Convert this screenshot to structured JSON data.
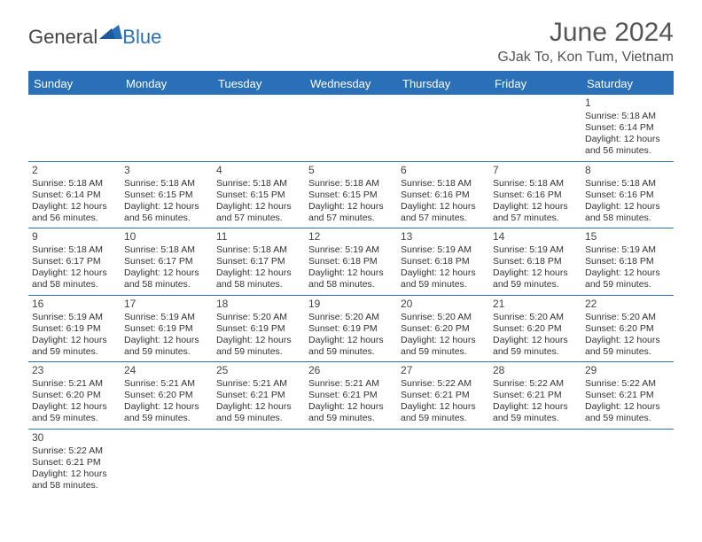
{
  "logo": {
    "text1": "General",
    "text2": "Blue"
  },
  "title": "June 2024",
  "location": "GJak To, Kon Tum, Vietnam",
  "day_names": [
    "Sunday",
    "Monday",
    "Tuesday",
    "Wednesday",
    "Thursday",
    "Friday",
    "Saturday"
  ],
  "colors": {
    "brand": "#2a70b8",
    "text": "#333333",
    "title": "#555555"
  },
  "layout": {
    "first_weekday_index": 6,
    "days_in_month": 30
  },
  "days": [
    {
      "n": 1,
      "sunrise": "5:18 AM",
      "sunset": "6:14 PM",
      "daylight": "12 hours and 56 minutes."
    },
    {
      "n": 2,
      "sunrise": "5:18 AM",
      "sunset": "6:14 PM",
      "daylight": "12 hours and 56 minutes."
    },
    {
      "n": 3,
      "sunrise": "5:18 AM",
      "sunset": "6:15 PM",
      "daylight": "12 hours and 56 minutes."
    },
    {
      "n": 4,
      "sunrise": "5:18 AM",
      "sunset": "6:15 PM",
      "daylight": "12 hours and 57 minutes."
    },
    {
      "n": 5,
      "sunrise": "5:18 AM",
      "sunset": "6:15 PM",
      "daylight": "12 hours and 57 minutes."
    },
    {
      "n": 6,
      "sunrise": "5:18 AM",
      "sunset": "6:16 PM",
      "daylight": "12 hours and 57 minutes."
    },
    {
      "n": 7,
      "sunrise": "5:18 AM",
      "sunset": "6:16 PM",
      "daylight": "12 hours and 57 minutes."
    },
    {
      "n": 8,
      "sunrise": "5:18 AM",
      "sunset": "6:16 PM",
      "daylight": "12 hours and 58 minutes."
    },
    {
      "n": 9,
      "sunrise": "5:18 AM",
      "sunset": "6:17 PM",
      "daylight": "12 hours and 58 minutes."
    },
    {
      "n": 10,
      "sunrise": "5:18 AM",
      "sunset": "6:17 PM",
      "daylight": "12 hours and 58 minutes."
    },
    {
      "n": 11,
      "sunrise": "5:18 AM",
      "sunset": "6:17 PM",
      "daylight": "12 hours and 58 minutes."
    },
    {
      "n": 12,
      "sunrise": "5:19 AM",
      "sunset": "6:18 PM",
      "daylight": "12 hours and 58 minutes."
    },
    {
      "n": 13,
      "sunrise": "5:19 AM",
      "sunset": "6:18 PM",
      "daylight": "12 hours and 59 minutes."
    },
    {
      "n": 14,
      "sunrise": "5:19 AM",
      "sunset": "6:18 PM",
      "daylight": "12 hours and 59 minutes."
    },
    {
      "n": 15,
      "sunrise": "5:19 AM",
      "sunset": "6:18 PM",
      "daylight": "12 hours and 59 minutes."
    },
    {
      "n": 16,
      "sunrise": "5:19 AM",
      "sunset": "6:19 PM",
      "daylight": "12 hours and 59 minutes."
    },
    {
      "n": 17,
      "sunrise": "5:19 AM",
      "sunset": "6:19 PM",
      "daylight": "12 hours and 59 minutes."
    },
    {
      "n": 18,
      "sunrise": "5:20 AM",
      "sunset": "6:19 PM",
      "daylight": "12 hours and 59 minutes."
    },
    {
      "n": 19,
      "sunrise": "5:20 AM",
      "sunset": "6:19 PM",
      "daylight": "12 hours and 59 minutes."
    },
    {
      "n": 20,
      "sunrise": "5:20 AM",
      "sunset": "6:20 PM",
      "daylight": "12 hours and 59 minutes."
    },
    {
      "n": 21,
      "sunrise": "5:20 AM",
      "sunset": "6:20 PM",
      "daylight": "12 hours and 59 minutes."
    },
    {
      "n": 22,
      "sunrise": "5:20 AM",
      "sunset": "6:20 PM",
      "daylight": "12 hours and 59 minutes."
    },
    {
      "n": 23,
      "sunrise": "5:21 AM",
      "sunset": "6:20 PM",
      "daylight": "12 hours and 59 minutes."
    },
    {
      "n": 24,
      "sunrise": "5:21 AM",
      "sunset": "6:20 PM",
      "daylight": "12 hours and 59 minutes."
    },
    {
      "n": 25,
      "sunrise": "5:21 AM",
      "sunset": "6:21 PM",
      "daylight": "12 hours and 59 minutes."
    },
    {
      "n": 26,
      "sunrise": "5:21 AM",
      "sunset": "6:21 PM",
      "daylight": "12 hours and 59 minutes."
    },
    {
      "n": 27,
      "sunrise": "5:22 AM",
      "sunset": "6:21 PM",
      "daylight": "12 hours and 59 minutes."
    },
    {
      "n": 28,
      "sunrise": "5:22 AM",
      "sunset": "6:21 PM",
      "daylight": "12 hours and 59 minutes."
    },
    {
      "n": 29,
      "sunrise": "5:22 AM",
      "sunset": "6:21 PM",
      "daylight": "12 hours and 59 minutes."
    },
    {
      "n": 30,
      "sunrise": "5:22 AM",
      "sunset": "6:21 PM",
      "daylight": "12 hours and 58 minutes."
    }
  ],
  "labels": {
    "sunrise": "Sunrise:",
    "sunset": "Sunset:",
    "daylight": "Daylight:"
  }
}
